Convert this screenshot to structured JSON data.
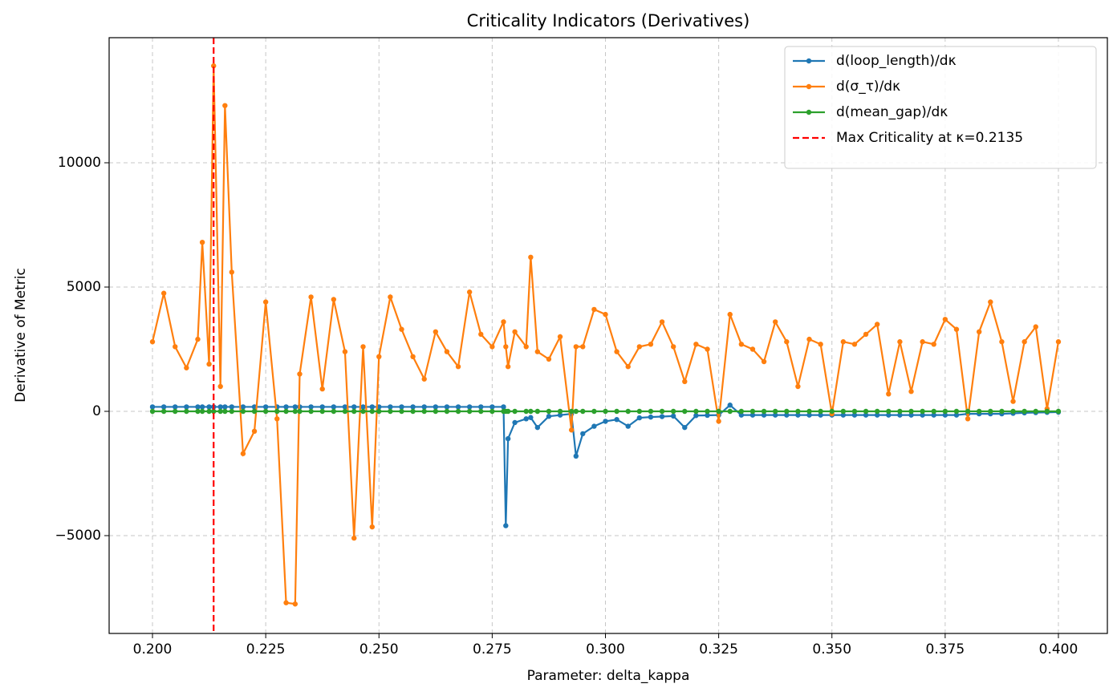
{
  "chart_data": {
    "type": "line",
    "title": "Criticality Indicators (Derivatives)",
    "x_label": "Parameter: delta_kappa",
    "y_label": "Derivative of Metric",
    "x": [
      0.2,
      0.2025,
      0.205,
      0.2075,
      0.21,
      0.211,
      0.2125,
      0.2135,
      0.215,
      0.216,
      0.2175,
      0.22,
      0.2225,
      0.225,
      0.2275,
      0.2295,
      0.2315,
      0.2325,
      0.235,
      0.2375,
      0.24,
      0.2425,
      0.2445,
      0.2465,
      0.2485,
      0.25,
      0.2525,
      0.255,
      0.2575,
      0.26,
      0.2625,
      0.265,
      0.2675,
      0.27,
      0.2725,
      0.275,
      0.2775,
      0.278,
      0.2785,
      0.28,
      0.2825,
      0.2835,
      0.285,
      0.2875,
      0.29,
      0.2925,
      0.2935,
      0.295,
      0.2975,
      0.3,
      0.3025,
      0.305,
      0.3075,
      0.31,
      0.3125,
      0.315,
      0.3175,
      0.32,
      0.3225,
      0.325,
      0.3275,
      0.33,
      0.3325,
      0.335,
      0.3375,
      0.34,
      0.3425,
      0.345,
      0.3475,
      0.35,
      0.3525,
      0.355,
      0.3575,
      0.36,
      0.3625,
      0.365,
      0.3675,
      0.37,
      0.3725,
      0.375,
      0.3775,
      0.38,
      0.3825,
      0.385,
      0.3875,
      0.39,
      0.3925,
      0.395,
      0.3975,
      0.4
    ],
    "series": [
      {
        "name": "d(loop_length)/dκ",
        "color": "#1f77b4",
        "values": [
          180,
          180,
          180,
          180,
          180,
          180,
          180,
          180,
          180,
          180,
          180,
          180,
          180,
          180,
          180,
          180,
          180,
          180,
          180,
          180,
          180,
          180,
          180,
          180,
          180,
          180,
          180,
          180,
          180,
          180,
          180,
          180,
          180,
          180,
          180,
          180,
          180,
          -4600,
          -1100,
          -450,
          -300,
          -250,
          -650,
          -200,
          -150,
          -100,
          -1800,
          -900,
          -600,
          -400,
          -330,
          -600,
          -260,
          -230,
          -210,
          -190,
          -650,
          -170,
          -160,
          -150,
          250,
          -150,
          -150,
          -150,
          -150,
          -150,
          -150,
          -150,
          -150,
          -150,
          -150,
          -150,
          -150,
          -150,
          -150,
          -150,
          -150,
          -150,
          -150,
          -150,
          -150,
          -100,
          -100,
          -100,
          -100,
          -80,
          -60,
          -50,
          -40,
          -30
        ]
      },
      {
        "name": "d(σ_τ)/dκ",
        "color": "#ff7f0e",
        "values": [
          2800,
          4750,
          2600,
          1750,
          2900,
          6800,
          1900,
          13900,
          1000,
          12300,
          5600,
          -1700,
          -800,
          4400,
          -300,
          -7700,
          -7750,
          1500,
          4600,
          900,
          4500,
          2400,
          -5100,
          2600,
          -4650,
          2200,
          4600,
          3300,
          2200,
          1300,
          3200,
          2400,
          1800,
          4800,
          3100,
          2600,
          3600,
          2600,
          1800,
          3200,
          2600,
          6200,
          2400,
          2100,
          3000,
          -750,
          2600,
          2600,
          4100,
          3900,
          2400,
          1800,
          2600,
          2700,
          3600,
          2600,
          1200,
          2700,
          2500,
          -400,
          3900,
          2700,
          2500,
          2000,
          3600,
          2800,
          1000,
          2900,
          2700,
          -100,
          2800,
          2700,
          3100,
          3500,
          700,
          2800,
          800,
          2800,
          2700,
          3700,
          3300,
          -300,
          3200,
          4400,
          2800,
          400,
          2800,
          3400,
          100,
          2800
        ]
      },
      {
        "name": "d(mean_gap)/dκ",
        "color": "#2ca02c",
        "values": [
          0,
          0,
          0,
          0,
          0,
          0,
          0,
          0,
          0,
          0,
          0,
          0,
          0,
          0,
          0,
          0,
          0,
          0,
          0,
          0,
          0,
          0,
          0,
          0,
          0,
          0,
          0,
          0,
          0,
          0,
          0,
          0,
          0,
          0,
          0,
          0,
          0,
          0,
          0,
          0,
          0,
          0,
          0,
          0,
          0,
          0,
          0,
          0,
          0,
          0,
          0,
          0,
          0,
          0,
          0,
          0,
          0,
          0,
          0,
          0,
          0,
          0,
          0,
          0,
          0,
          0,
          0,
          0,
          0,
          0,
          0,
          0,
          0,
          0,
          0,
          0,
          0,
          0,
          0,
          0,
          0,
          0,
          0,
          0,
          0,
          0,
          0,
          0,
          0,
          0
        ]
      }
    ],
    "vline": {
      "x": 0.2135,
      "label": "Max Criticality at κ=0.2135",
      "color": "#ff0000"
    },
    "xlim": [
      0.19043,
      0.41081
    ],
    "ylim": [
      -8935,
      15032
    ],
    "xticks": [
      {
        "value": 0.2,
        "label": "0.200"
      },
      0.225,
      {
        "value": 0.25,
        "label": "0.250"
      },
      0.275,
      {
        "value": 0.3,
        "label": "0.300"
      },
      0.325,
      {
        "value": 0.35,
        "label": "0.350"
      },
      0.375,
      {
        "value": 0.4,
        "label": "0.400"
      }
    ],
    "yticks": [
      {
        "value": -5000,
        "label": "−5000"
      },
      0,
      5000,
      10000
    ],
    "grid": true,
    "legend": "upper right"
  }
}
